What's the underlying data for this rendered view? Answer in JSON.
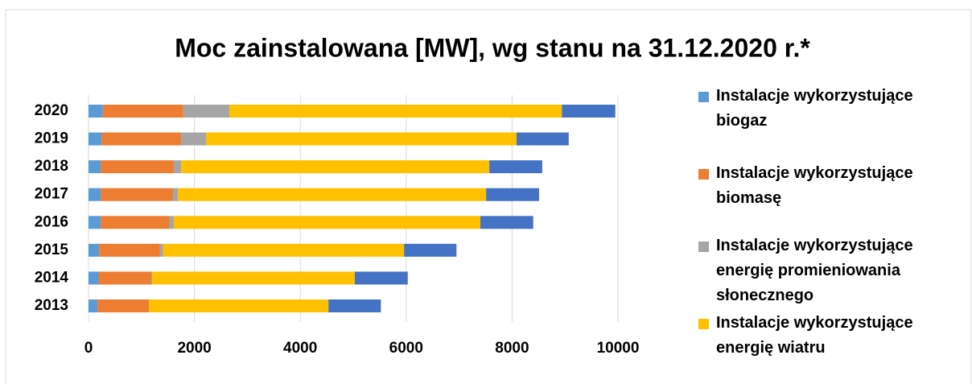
{
  "chart_data": {
    "type": "stacked-bar-horizontal",
    "title": "Moc zainstalowana [MW], wg stanu na 31.12.2020 r.*",
    "categories": [
      "2013",
      "2014",
      "2015",
      "2016",
      "2017",
      "2018",
      "2019",
      "2020"
    ],
    "series": [
      {
        "name": "Instalacje wykorzystujące biogaz",
        "color": "#5b9bd5",
        "values": [
          170,
          190,
          200,
          230,
          230,
          230,
          245,
          270
        ]
      },
      {
        "name": "Instalacje wykorzystujące biomasę",
        "color": "#ed7d31",
        "values": [
          970,
          995,
          1150,
          1290,
          1365,
          1380,
          1505,
          1520
        ]
      },
      {
        "name": "Instalacje wykorzystujące energię promieniowania słonecznego",
        "color": "#a5a5a5",
        "values": [
          2,
          15,
          60,
          90,
          95,
          140,
          470,
          870
        ]
      },
      {
        "name": "Instalacje wykorzystujące energię wiatru",
        "color": "#ffc000",
        "values": [
          3390,
          3830,
          4550,
          5790,
          5820,
          5820,
          5865,
          6280
        ]
      },
      {
        "color": "#4472c4",
        "values": [
          990,
          1000,
          990,
          1000,
          1000,
          1000,
          985,
          1010
        ]
      }
    ],
    "xlim": [
      0,
      10000
    ],
    "xticks": [
      0,
      2000,
      4000,
      6000,
      8000,
      10000
    ],
    "grid": true
  }
}
